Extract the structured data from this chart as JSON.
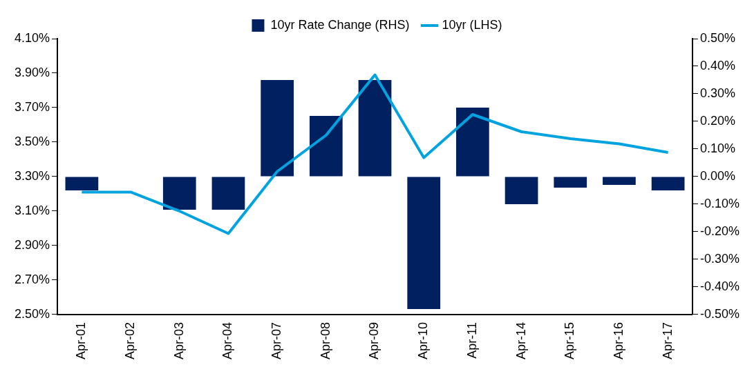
{
  "chart_data": {
    "type": "bar",
    "categories": [
      "Apr-01",
      "Apr-02",
      "Apr-03",
      "Apr-04",
      "Apr-07",
      "Apr-08",
      "Apr-09",
      "Apr-10",
      "Apr-11",
      "Apr-14",
      "Apr-15",
      "Apr-16",
      "Apr-17"
    ],
    "series": [
      {
        "name": "10yr Rate Change (RHS)",
        "axis": "y2",
        "color": "#002060",
        "values": [
          -0.05,
          0,
          -0.12,
          -0.12,
          0.35,
          0.22,
          0.35,
          -0.48,
          0.25,
          -0.1,
          -0.04,
          -0.03,
          -0.05
        ]
      },
      {
        "name": "10yr (LHS)",
        "type": "line",
        "color": "#00a3e0",
        "values": [
          3.21,
          3.21,
          3.1,
          2.97,
          3.33,
          3.54,
          3.89,
          3.41,
          3.66,
          3.56,
          3.52,
          3.49,
          3.44
        ]
      }
    ],
    "ylim": [
      2.5,
      4.1
    ],
    "yticks": [
      {
        "value": 2.5,
        "label": "2.50%"
      },
      {
        "value": 2.7,
        "label": "2.70%"
      },
      {
        "value": 2.9,
        "label": "2.90%"
      },
      {
        "value": 3.1,
        "label": "3.10%"
      },
      {
        "value": 3.3,
        "label": "3.30%"
      },
      {
        "value": 3.5,
        "label": "3.50%"
      },
      {
        "value": 3.7,
        "label": "3.70%"
      },
      {
        "value": 3.9,
        "label": "3.90%"
      },
      {
        "value": 4.1,
        "label": "4.10%"
      }
    ],
    "y2lim": [
      -0.5,
      0.5
    ],
    "y2ticks": [
      {
        "value": -0.5,
        "label": "-0.50%"
      },
      {
        "value": -0.4,
        "label": "-0.40%"
      },
      {
        "value": -0.3,
        "label": "-0.30%"
      },
      {
        "value": -0.2,
        "label": "-0.20%"
      },
      {
        "value": -0.1,
        "label": "-0.10%"
      },
      {
        "value": 0,
        "label": "0.00%"
      },
      {
        "value": 0.1,
        "label": "0.10%"
      },
      {
        "value": 0.2,
        "label": "0.20%"
      },
      {
        "value": 0.3,
        "label": "0.30%"
      },
      {
        "value": 0.4,
        "label": "0.40%"
      },
      {
        "value": 0.5,
        "label": "0.50%"
      }
    ],
    "grid": false,
    "legend": "top",
    "marker": "none",
    "line_style": "solid"
  }
}
